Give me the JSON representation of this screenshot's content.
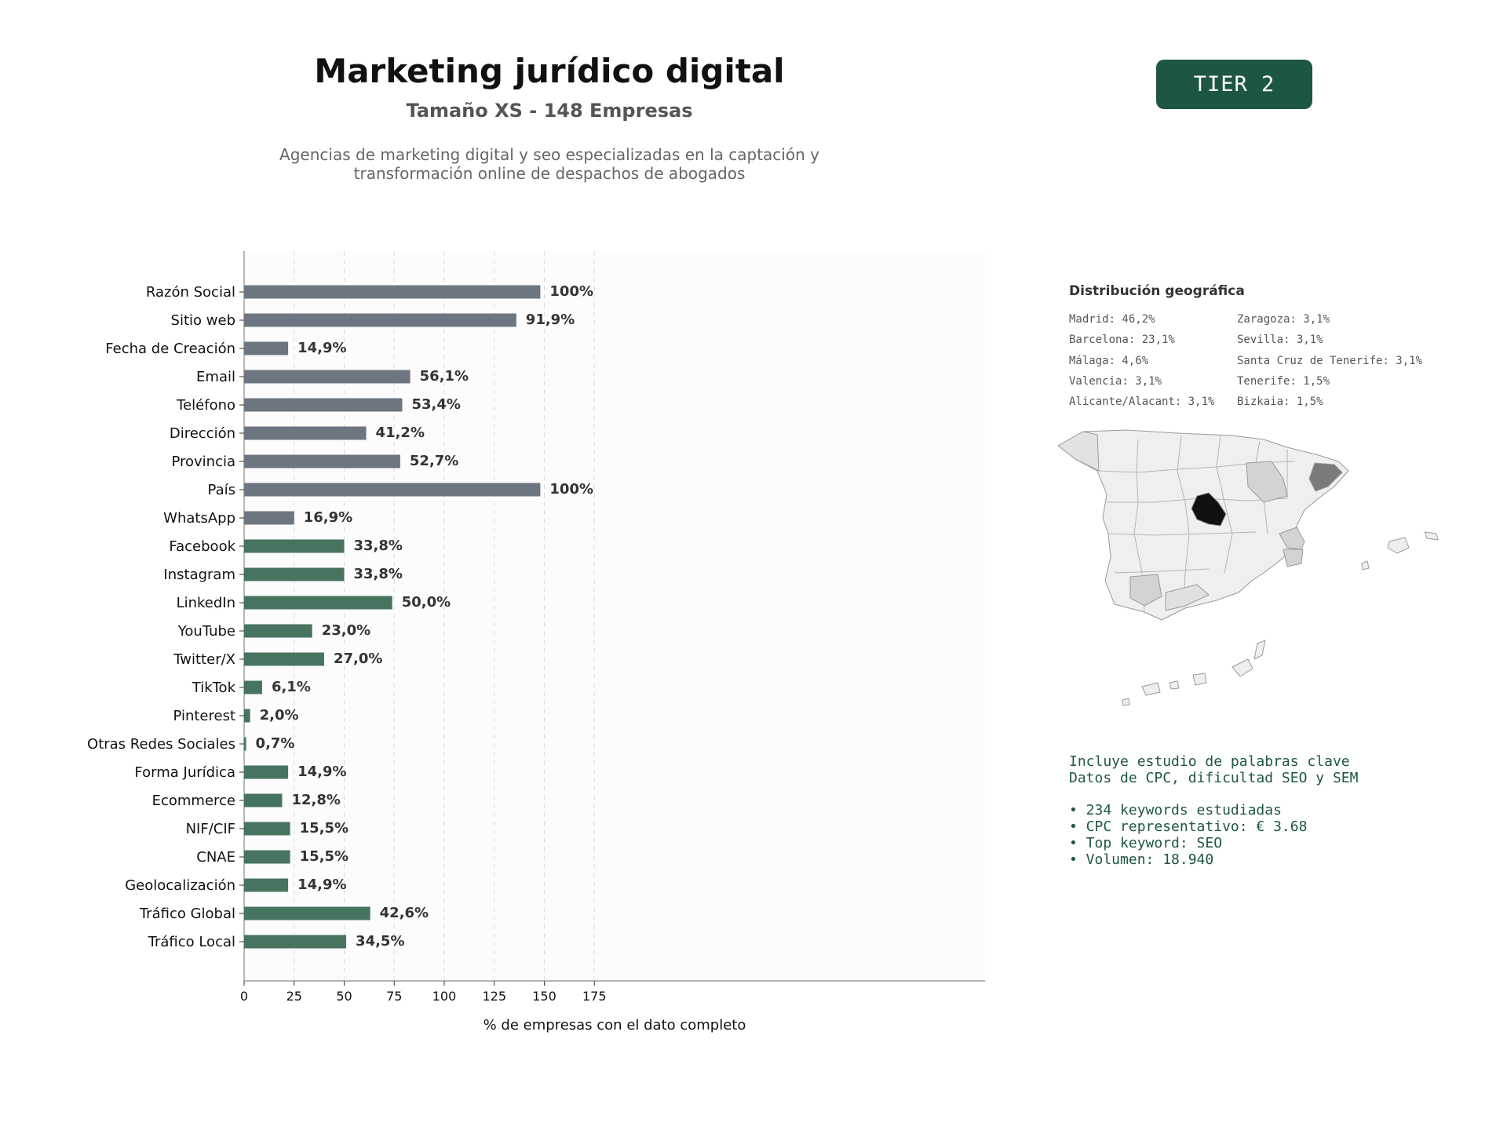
{
  "header": {
    "title": "Marketing jurídico digital",
    "subtitle": "Tamaño XS - 148 Empresas",
    "description_lines": [
      "Agencias de marketing digital y seo especializadas en la captación y",
      "transformación online de despachos de abogados"
    ],
    "tier_badge": "TIER 2"
  },
  "colors": {
    "gray_bar": "#6c7580",
    "green_bar": "#47745f",
    "badge": "#1e5741",
    "map_fill": "#efefef",
    "map_madrid": "#111111",
    "map_barcelona": "#7a7a7a",
    "map_mid": "#d3d3d3"
  },
  "chart_data": {
    "type": "bar",
    "orientation": "horizontal",
    "categories": [
      "Razón Social",
      "Sitio web",
      "Fecha de Creación",
      "Email",
      "Teléfono",
      "Dirección",
      "Provincia",
      "País",
      "WhatsApp",
      "Facebook",
      "Instagram",
      "LinkedIn",
      "YouTube",
      "Twitter/X",
      "TikTok",
      "Pinterest",
      "Otras Redes Sociales",
      "Forma Jurídica",
      "Ecommerce",
      "NIF/CIF",
      "CNAE",
      "Geolocalización",
      "Tráfico Global",
      "Tráfico Local"
    ],
    "values": [
      148,
      136,
      22,
      83,
      79,
      61,
      78,
      148,
      25,
      50,
      50,
      74,
      34,
      40,
      9,
      3,
      1,
      22,
      19,
      23,
      23,
      22,
      63,
      51
    ],
    "value_labels": [
      "100%",
      "91,9%",
      "14,9%",
      "56,1%",
      "53,4%",
      "41,2%",
      "52,7%",
      "100%",
      "16,9%",
      "33,8%",
      "33,8%",
      "50,0%",
      "23,0%",
      "27,0%",
      "6,1%",
      "2,0%",
      "0,7%",
      "14,9%",
      "12,8%",
      "15,5%",
      "15,5%",
      "14,9%",
      "42,6%",
      "34,5%"
    ],
    "bar_groups": [
      "gray",
      "gray",
      "gray",
      "gray",
      "gray",
      "gray",
      "gray",
      "gray",
      "gray",
      "green",
      "green",
      "green",
      "green",
      "green",
      "green",
      "green",
      "green",
      "green",
      "green",
      "green",
      "green",
      "green",
      "green",
      "green"
    ],
    "xlim": [
      0,
      185
    ],
    "xticks": [
      0,
      25,
      50,
      75,
      100,
      125,
      150,
      175
    ],
    "xlabel": "% de empresas con el dato completo",
    "grid": "vertical dashed"
  },
  "geo": {
    "title": "Distribución geográfica",
    "col1": [
      "Madrid: 46,2%",
      "Barcelona: 23,1%",
      "Málaga: 4,6%",
      "Valencia: 3,1%",
      "Alicante/Alacant: 3,1%"
    ],
    "col2": [
      "Zaragoza: 3,1%",
      "Sevilla: 3,1%",
      "Santa Cruz de Tenerife: 3,1%",
      "Tenerife: 1,5%",
      "Bizkaia: 1,5%"
    ]
  },
  "keywords": {
    "intro": [
      "Incluye estudio de palabras clave",
      "Datos de CPC, dificultad SEO y SEM"
    ],
    "bullets": [
      "• 234 keywords estudiadas",
      "• CPC representativo: € 3.68",
      "• Top keyword: SEO",
      "• Volumen: 18.940"
    ]
  }
}
